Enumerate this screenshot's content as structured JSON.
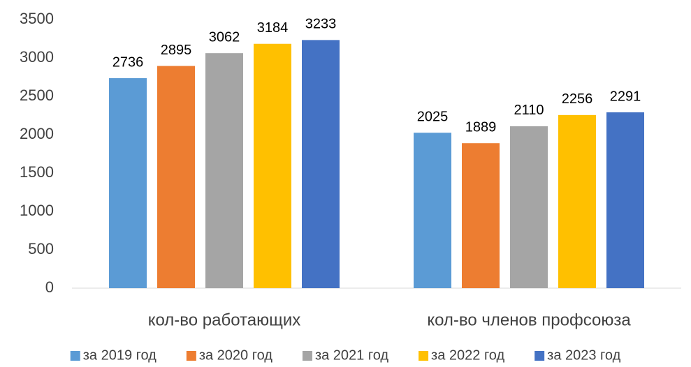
{
  "chart_data": {
    "type": "bar",
    "categories": [
      "кол-во работающих",
      "кол-во членов профсоюза"
    ],
    "series": [
      {
        "name": "за 2019 год",
        "color": "#5b9bd5",
        "values": [
          2736,
          2025
        ]
      },
      {
        "name": "за 2020 год",
        "color": "#ed7d31",
        "values": [
          2895,
          1889
        ]
      },
      {
        "name": "за 2021 год",
        "color": "#a5a5a5",
        "values": [
          3062,
          2110
        ]
      },
      {
        "name": "за 2022 год",
        "color": "#ffc000",
        "values": [
          3184,
          2256
        ]
      },
      {
        "name": "за 2023 год",
        "color": "#4472c4",
        "values": [
          3233,
          2291
        ]
      }
    ],
    "ylim": [
      0,
      3500
    ],
    "yticks": [
      0,
      500,
      1000,
      1500,
      2000,
      2500,
      3000,
      3500
    ],
    "grid": false,
    "data_labels": true,
    "legend": "bottom"
  }
}
